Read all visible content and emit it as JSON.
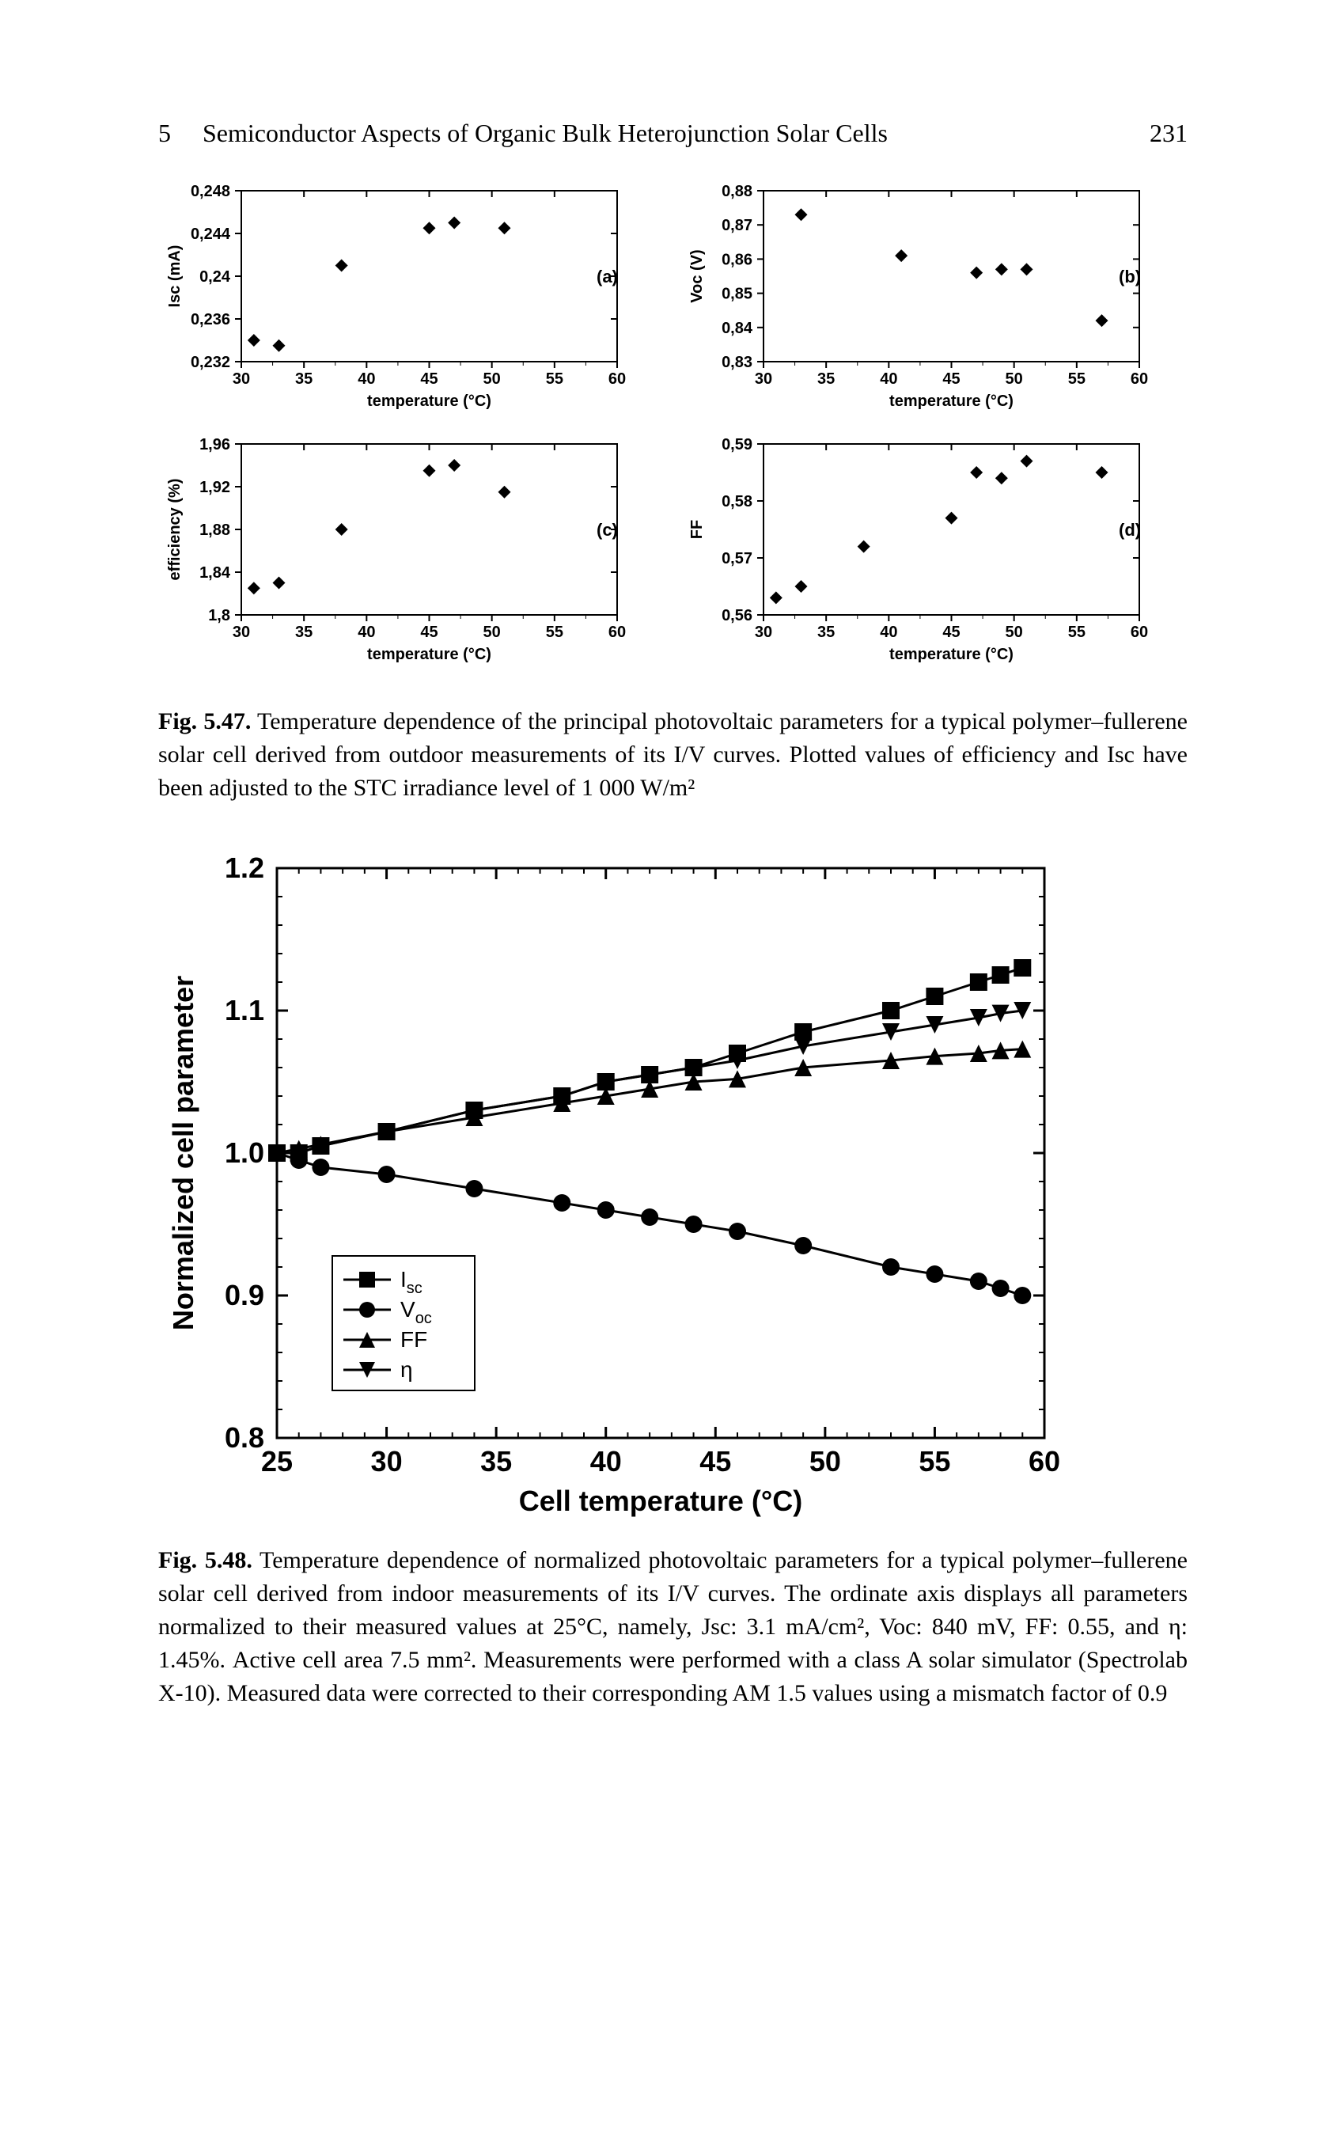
{
  "header": {
    "chapter_num": "5",
    "chapter_title": "Semiconductor Aspects of Organic Bulk Heterojunction Solar Cells",
    "page_number": "231"
  },
  "fig547": {
    "common": {
      "xlabel": "temperature (°C)",
      "x_ticks": [
        30,
        35,
        40,
        45,
        50,
        55,
        60
      ],
      "marker": "diamond",
      "marker_size": 8,
      "marker_color": "#000000",
      "axis_color": "#000000",
      "font_family": "Arial",
      "tick_fontsize": 18
    },
    "panels": [
      {
        "letter": "(a)",
        "ylabel": "Isc (mA)",
        "y_ticks": [
          0.232,
          0.236,
          0.24,
          0.244,
          0.248
        ],
        "y_tick_labels": [
          "0,232",
          "0,236",
          "0,24",
          "0,244",
          "0,248"
        ],
        "ylim": [
          0.232,
          0.248
        ],
        "data": [
          {
            "x": 31,
            "y": 0.234
          },
          {
            "x": 33,
            "y": 0.2335
          },
          {
            "x": 38,
            "y": 0.241
          },
          {
            "x": 45,
            "y": 0.2445
          },
          {
            "x": 47,
            "y": 0.245
          },
          {
            "x": 51,
            "y": 0.2445
          }
        ]
      },
      {
        "letter": "(b)",
        "ylabel": "Voc (V)",
        "y_ticks": [
          0.83,
          0.84,
          0.85,
          0.86,
          0.87,
          0.88
        ],
        "y_tick_labels": [
          "0,83",
          "0,84",
          "0,85",
          "0,86",
          "0,87",
          "0,88"
        ],
        "ylim": [
          0.83,
          0.88
        ],
        "data": [
          {
            "x": 33,
            "y": 0.873
          },
          {
            "x": 41,
            "y": 0.861
          },
          {
            "x": 47,
            "y": 0.856
          },
          {
            "x": 49,
            "y": 0.857
          },
          {
            "x": 51,
            "y": 0.857
          },
          {
            "x": 57,
            "y": 0.842
          }
        ]
      },
      {
        "letter": "(c)",
        "ylabel": "efficiency (%)",
        "y_ticks": [
          1.8,
          1.84,
          1.88,
          1.92,
          1.96
        ],
        "y_tick_labels": [
          "1,8",
          "1,84",
          "1,88",
          "1,92",
          "1,96"
        ],
        "ylim": [
          1.8,
          1.96
        ],
        "data": [
          {
            "x": 31,
            "y": 1.825
          },
          {
            "x": 33,
            "y": 1.83
          },
          {
            "x": 38,
            "y": 1.88
          },
          {
            "x": 45,
            "y": 1.935
          },
          {
            "x": 47,
            "y": 1.94
          },
          {
            "x": 51,
            "y": 1.915
          }
        ]
      },
      {
        "letter": "(d)",
        "ylabel": "FF",
        "y_ticks": [
          0.56,
          0.57,
          0.58,
          0.59
        ],
        "y_tick_labels": [
          "0,56",
          "0,57",
          "0,58",
          "0,59"
        ],
        "ylim": [
          0.56,
          0.59
        ],
        "data": [
          {
            "x": 31,
            "y": 0.563
          },
          {
            "x": 33,
            "y": 0.565
          },
          {
            "x": 38,
            "y": 0.572
          },
          {
            "x": 45,
            "y": 0.577
          },
          {
            "x": 47,
            "y": 0.585
          },
          {
            "x": 49,
            "y": 0.584
          },
          {
            "x": 51,
            "y": 0.587
          },
          {
            "x": 57,
            "y": 0.585
          }
        ]
      }
    ],
    "caption_bold": "Fig. 5.47.",
    "caption": "Temperature dependence of the principal photovoltaic parameters for a typical polymer–fullerene solar cell derived from outdoor measurements of its I/V curves. Plotted values of efficiency and Isc have been adjusted to the STC irradiance level of 1 000 W/m²"
  },
  "fig548": {
    "xlabel": "Cell temperature (°C)",
    "ylabel": "Normalized cell parameter",
    "x_ticks": [
      25,
      30,
      35,
      40,
      45,
      50,
      55,
      60
    ],
    "y_ticks": [
      0.8,
      0.9,
      1.0,
      1.1,
      1.2
    ],
    "y_tick_labels": [
      "0.8",
      "0.9",
      "1.0",
      "1.1",
      "1.2"
    ],
    "xlim": [
      25,
      60
    ],
    "ylim": [
      0.8,
      1.2
    ],
    "axis_color": "#000000",
    "line_width": 3,
    "marker_size": 11,
    "series": [
      {
        "name": "Isc",
        "label": "Isc",
        "marker": "square",
        "color": "#000000",
        "data": [
          {
            "x": 25,
            "y": 1.0
          },
          {
            "x": 26,
            "y": 1.0
          },
          {
            "x": 27,
            "y": 1.005
          },
          {
            "x": 30,
            "y": 1.015
          },
          {
            "x": 34,
            "y": 1.03
          },
          {
            "x": 38,
            "y": 1.04
          },
          {
            "x": 40,
            "y": 1.05
          },
          {
            "x": 42,
            "y": 1.055
          },
          {
            "x": 44,
            "y": 1.06
          },
          {
            "x": 46,
            "y": 1.07
          },
          {
            "x": 49,
            "y": 1.085
          },
          {
            "x": 53,
            "y": 1.1
          },
          {
            "x": 55,
            "y": 1.11
          },
          {
            "x": 57,
            "y": 1.12
          },
          {
            "x": 58,
            "y": 1.125
          },
          {
            "x": 59,
            "y": 1.13
          }
        ]
      },
      {
        "name": "Voc",
        "label": "Voc",
        "marker": "circle",
        "color": "#000000",
        "data": [
          {
            "x": 25,
            "y": 1.0
          },
          {
            "x": 26,
            "y": 0.995
          },
          {
            "x": 27,
            "y": 0.99
          },
          {
            "x": 30,
            "y": 0.985
          },
          {
            "x": 34,
            "y": 0.975
          },
          {
            "x": 38,
            "y": 0.965
          },
          {
            "x": 40,
            "y": 0.96
          },
          {
            "x": 42,
            "y": 0.955
          },
          {
            "x": 44,
            "y": 0.95
          },
          {
            "x": 46,
            "y": 0.945
          },
          {
            "x": 49,
            "y": 0.935
          },
          {
            "x": 53,
            "y": 0.92
          },
          {
            "x": 55,
            "y": 0.915
          },
          {
            "x": 57,
            "y": 0.91
          },
          {
            "x": 58,
            "y": 0.905
          },
          {
            "x": 59,
            "y": 0.9
          }
        ]
      },
      {
        "name": "FF",
        "label": "FF",
        "marker": "triangle",
        "color": "#000000",
        "data": [
          {
            "x": 25,
            "y": 1.0
          },
          {
            "x": 26,
            "y": 1.003
          },
          {
            "x": 27,
            "y": 1.006
          },
          {
            "x": 30,
            "y": 1.015
          },
          {
            "x": 34,
            "y": 1.025
          },
          {
            "x": 38,
            "y": 1.035
          },
          {
            "x": 40,
            "y": 1.04
          },
          {
            "x": 42,
            "y": 1.045
          },
          {
            "x": 44,
            "y": 1.05
          },
          {
            "x": 46,
            "y": 1.052
          },
          {
            "x": 49,
            "y": 1.06
          },
          {
            "x": 53,
            "y": 1.065
          },
          {
            "x": 55,
            "y": 1.068
          },
          {
            "x": 57,
            "y": 1.07
          },
          {
            "x": 58,
            "y": 1.072
          },
          {
            "x": 59,
            "y": 1.073
          }
        ]
      },
      {
        "name": "eta",
        "label": "η",
        "marker": "inverted-triangle",
        "color": "#000000",
        "data": [
          {
            "x": 25,
            "y": 1.0
          },
          {
            "x": 26,
            "y": 1.0
          },
          {
            "x": 27,
            "y": 1.005
          },
          {
            "x": 30,
            "y": 1.015
          },
          {
            "x": 34,
            "y": 1.03
          },
          {
            "x": 38,
            "y": 1.04
          },
          {
            "x": 40,
            "y": 1.05
          },
          {
            "x": 42,
            "y": 1.055
          },
          {
            "x": 44,
            "y": 1.06
          },
          {
            "x": 46,
            "y": 1.065
          },
          {
            "x": 49,
            "y": 1.075
          },
          {
            "x": 53,
            "y": 1.085
          },
          {
            "x": 55,
            "y": 1.09
          },
          {
            "x": 57,
            "y": 1.095
          },
          {
            "x": 58,
            "y": 1.098
          },
          {
            "x": 59,
            "y": 1.1
          }
        ]
      }
    ],
    "caption_bold": "Fig. 5.48.",
    "caption": "Temperature dependence of normalized photovoltaic parameters for a typical polymer–fullerene solar cell derived from indoor measurements of its I/V curves. The ordinate axis displays all parameters normalized to their measured values at 25°C, namely, Jsc: 3.1 mA/cm², Voc: 840 mV, FF: 0.55, and η: 1.45%. Active cell area 7.5 mm². Measurements were performed with a class A solar simulator (Spectrolab X-10). Measured data were corrected to their corresponding AM 1.5 values using a mismatch factor of 0.9"
  }
}
